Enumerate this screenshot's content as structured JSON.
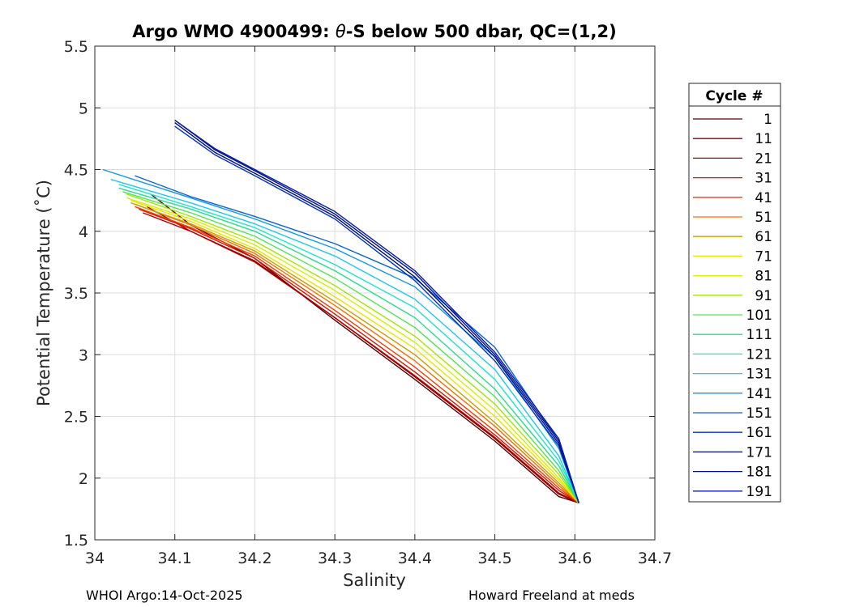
{
  "chart_data": {
    "type": "line",
    "title_prefix": "Argo WMO 4900499: ",
    "title_theta": "θ",
    "title_suffix": "-S below 500 dbar,  QC=(1,2)",
    "xlabel": "Salinity",
    "ylabel": "Potential Temperature (˚C)",
    "xlim": [
      34.0,
      34.7
    ],
    "ylim": [
      1.5,
      5.5
    ],
    "xticks": [
      34,
      34.1,
      34.2,
      34.3,
      34.4,
      34.5,
      34.6,
      34.7
    ],
    "xtick_labels": [
      "34",
      "34.1",
      "34.2",
      "34.3",
      "34.4",
      "34.5",
      "34.6",
      "34.7"
    ],
    "yticks": [
      1.5,
      2,
      2.5,
      3,
      3.5,
      4,
      4.5,
      5,
      5.5
    ],
    "ytick_labels": [
      "1.5",
      "2",
      "2.5",
      "3",
      "3.5",
      "4",
      "4.5",
      "5",
      "5.5"
    ],
    "grid": true,
    "legend_title": "Cycle #",
    "legend_position": "outside-right",
    "series": [
      {
        "name": "1",
        "color": "#5a0000",
        "x": [
          34.07,
          34.12,
          34.2,
          34.3,
          34.4,
          34.5,
          34.58,
          34.605
        ],
        "y": [
          4.3,
          4.05,
          3.78,
          3.28,
          2.8,
          2.3,
          1.85,
          1.8
        ]
      },
      {
        "name": "11",
        "color": "#8c0000",
        "x": [
          34.065,
          34.12,
          34.2,
          34.3,
          34.4,
          34.5,
          34.58,
          34.605
        ],
        "y": [
          4.2,
          4.0,
          3.76,
          3.3,
          2.82,
          2.32,
          1.87,
          1.8
        ]
      },
      {
        "name": "21",
        "color": "#b40000",
        "x": [
          34.06,
          34.12,
          34.2,
          34.3,
          34.4,
          34.5,
          34.58,
          34.605
        ],
        "y": [
          4.15,
          4.0,
          3.75,
          3.3,
          2.83,
          2.33,
          1.88,
          1.8
        ]
      },
      {
        "name": "31",
        "color": "#dc1400",
        "x": [
          34.055,
          34.12,
          34.2,
          34.3,
          34.4,
          34.5,
          34.58,
          34.605
        ],
        "y": [
          4.18,
          4.02,
          3.78,
          3.33,
          2.86,
          2.35,
          1.9,
          1.8
        ]
      },
      {
        "name": "41",
        "color": "#f03c00",
        "x": [
          34.05,
          34.12,
          34.2,
          34.3,
          34.4,
          34.5,
          34.58,
          34.605
        ],
        "y": [
          4.2,
          4.03,
          3.8,
          3.36,
          2.9,
          2.38,
          1.92,
          1.8
        ]
      },
      {
        "name": "51",
        "color": "#f87000",
        "x": [
          34.05,
          34.12,
          34.2,
          34.3,
          34.4,
          34.5,
          34.58,
          34.605
        ],
        "y": [
          4.22,
          4.05,
          3.82,
          3.4,
          2.95,
          2.42,
          1.94,
          1.8
        ]
      },
      {
        "name": "61",
        "color": "#c8a000",
        "x": [
          34.045,
          34.12,
          34.2,
          34.3,
          34.4,
          34.5,
          34.58,
          34.605
        ],
        "y": [
          4.23,
          4.06,
          3.84,
          3.43,
          3.0,
          2.45,
          1.96,
          1.8
        ]
      },
      {
        "name": "71",
        "color": "#f0e000",
        "x": [
          34.045,
          34.12,
          34.2,
          34.3,
          34.4,
          34.5,
          34.58,
          34.605
        ],
        "y": [
          4.25,
          4.08,
          3.86,
          3.47,
          3.05,
          2.5,
          1.98,
          1.8
        ]
      },
      {
        "name": "81",
        "color": "#d4f000",
        "x": [
          34.04,
          34.12,
          34.2,
          34.3,
          34.4,
          34.5,
          34.58,
          34.605
        ],
        "y": [
          4.27,
          4.1,
          3.89,
          3.52,
          3.1,
          2.55,
          2.0,
          1.8
        ]
      },
      {
        "name": "91",
        "color": "#a0e600",
        "x": [
          34.04,
          34.12,
          34.2,
          34.3,
          34.4,
          34.5,
          34.58,
          34.605
        ],
        "y": [
          4.3,
          4.12,
          3.92,
          3.56,
          3.15,
          2.6,
          2.03,
          1.8
        ]
      },
      {
        "name": "101",
        "color": "#50e650",
        "x": [
          34.035,
          34.12,
          34.2,
          34.3,
          34.4,
          34.5,
          34.58,
          34.605
        ],
        "y": [
          4.32,
          4.15,
          3.96,
          3.62,
          3.22,
          2.66,
          2.06,
          1.8
        ]
      },
      {
        "name": "111",
        "color": "#28dc8c",
        "x": [
          34.03,
          34.12,
          34.2,
          34.3,
          34.4,
          34.5,
          34.58,
          34.605
        ],
        "y": [
          4.35,
          4.18,
          4.0,
          3.68,
          3.3,
          2.72,
          2.1,
          1.8
        ]
      },
      {
        "name": "121",
        "color": "#1ee6c8",
        "x": [
          34.03,
          34.12,
          34.2,
          34.3,
          34.4,
          34.5,
          34.58,
          34.605
        ],
        "y": [
          4.38,
          4.2,
          4.03,
          3.73,
          3.38,
          2.8,
          2.14,
          1.8
        ]
      },
      {
        "name": "131",
        "color": "#1ec8f0",
        "x": [
          34.02,
          34.12,
          34.2,
          34.3,
          34.4,
          34.5,
          34.58,
          34.605
        ],
        "y": [
          4.42,
          4.23,
          4.06,
          3.8,
          3.45,
          2.88,
          2.18,
          1.8
        ]
      },
      {
        "name": "141",
        "color": "#1496e6",
        "x": [
          34.01,
          34.12,
          34.2,
          34.3,
          34.4,
          34.5,
          34.58,
          34.605
        ],
        "y": [
          4.5,
          4.27,
          4.1,
          3.86,
          3.55,
          2.98,
          2.24,
          1.8
        ]
      },
      {
        "name": "151",
        "color": "#0a64d2",
        "x": [
          34.05,
          34.12,
          34.2,
          34.3,
          34.4,
          34.5,
          34.58,
          34.605
        ],
        "y": [
          4.45,
          4.28,
          4.12,
          3.9,
          3.62,
          3.06,
          2.3,
          1.8
        ]
      },
      {
        "name": "161",
        "color": "#0032be",
        "x": [
          34.1,
          34.15,
          34.2,
          34.3,
          34.4,
          34.5,
          34.58,
          34.605
        ],
        "y": [
          4.85,
          4.62,
          4.45,
          4.1,
          3.6,
          2.95,
          2.26,
          1.8
        ]
      },
      {
        "name": "171",
        "color": "#000a82",
        "x": [
          34.1,
          34.15,
          34.2,
          34.3,
          34.4,
          34.5,
          34.58,
          34.605
        ],
        "y": [
          4.88,
          4.64,
          4.47,
          4.12,
          3.63,
          2.98,
          2.28,
          1.8
        ]
      },
      {
        "name": "181",
        "color": "#00148c",
        "x": [
          34.1,
          34.15,
          34.2,
          34.3,
          34.4,
          34.5,
          34.58,
          34.605
        ],
        "y": [
          4.9,
          4.66,
          4.49,
          4.14,
          3.66,
          3.0,
          2.3,
          1.8
        ]
      },
      {
        "name": "191",
        "color": "#0a1ea0",
        "x": [
          34.1,
          34.15,
          34.2,
          34.3,
          34.4,
          34.5,
          34.58,
          34.605
        ],
        "y": [
          4.9,
          4.67,
          4.5,
          4.16,
          3.68,
          3.02,
          2.32,
          1.8
        ]
      }
    ]
  },
  "footer": {
    "left": "WHOI Argo:14-Oct-2025",
    "right": "Howard Freeland at meds"
  }
}
